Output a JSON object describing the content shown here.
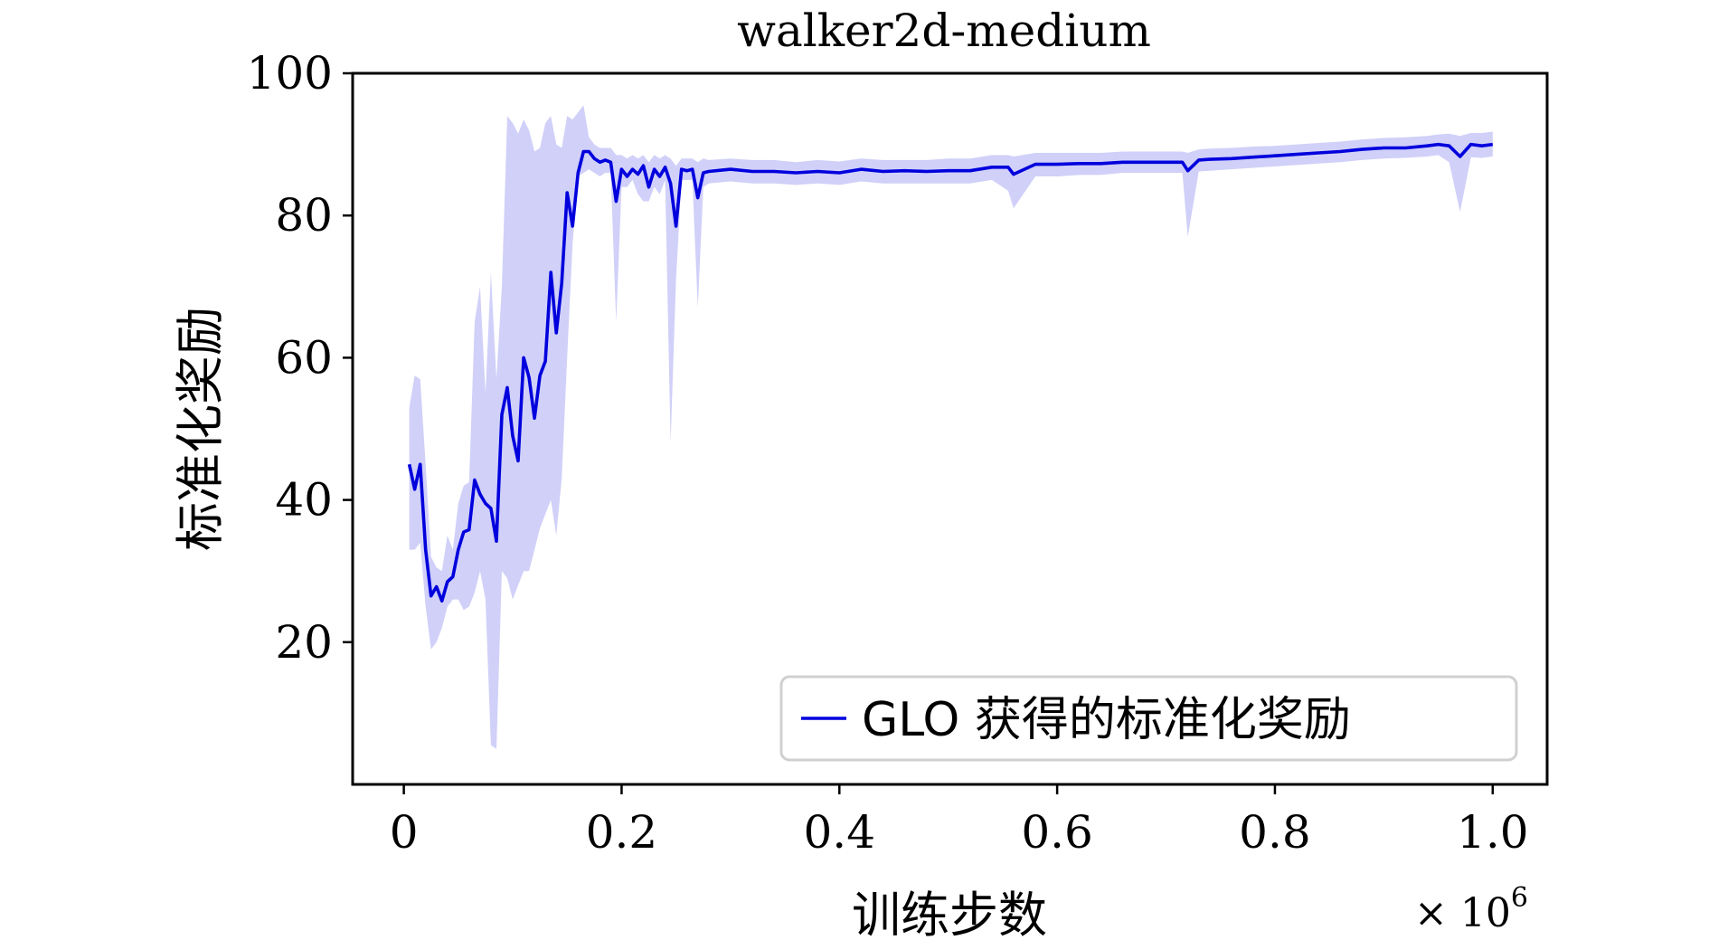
{
  "chart_data": {
    "type": "line",
    "title": "walker2d-medium",
    "xlabel": "训练步数",
    "ylabel": "标准化奖励",
    "x_multiplier_label": "× 10",
    "x_multiplier_exponent": "6",
    "xlim": [
      -0.047,
      1.05
    ],
    "ylim": [
      0,
      100
    ],
    "x_ticks": [
      {
        "value": 0,
        "label": "0"
      },
      {
        "value": 0.2,
        "label": "0.2"
      },
      {
        "value": 0.4,
        "label": "0.4"
      },
      {
        "value": 0.6,
        "label": "0.6"
      },
      {
        "value": 0.8,
        "label": "0.8"
      },
      {
        "value": 1.0,
        "label": "1.0"
      }
    ],
    "y_ticks": [
      {
        "value": 20,
        "label": "20"
      },
      {
        "value": 40,
        "label": "40"
      },
      {
        "value": 60,
        "label": "60"
      },
      {
        "value": 80,
        "label": "80"
      },
      {
        "value": 100,
        "label": "100"
      }
    ],
    "grid": false,
    "legend": {
      "position": "bottom-right",
      "entries": [
        "GLO 获得的标准化奖励"
      ]
    },
    "series": [
      {
        "name": "GLO 获得的标准化奖励",
        "color": "#0000dd",
        "band_color": "#c8c8f8",
        "x": [
          0.005,
          0.01,
          0.015,
          0.02,
          0.025,
          0.03,
          0.035,
          0.04,
          0.045,
          0.05,
          0.055,
          0.06,
          0.065,
          0.07,
          0.075,
          0.08,
          0.085,
          0.09,
          0.095,
          0.1,
          0.105,
          0.11,
          0.115,
          0.12,
          0.125,
          0.13,
          0.135,
          0.14,
          0.145,
          0.15,
          0.155,
          0.16,
          0.165,
          0.17,
          0.175,
          0.18,
          0.185,
          0.19,
          0.195,
          0.2,
          0.205,
          0.21,
          0.215,
          0.22,
          0.225,
          0.23,
          0.235,
          0.24,
          0.245,
          0.25,
          0.255,
          0.26,
          0.265,
          0.27,
          0.275,
          0.28,
          0.3,
          0.32,
          0.34,
          0.36,
          0.38,
          0.4,
          0.42,
          0.44,
          0.46,
          0.48,
          0.5,
          0.52,
          0.54,
          0.555,
          0.56,
          0.58,
          0.6,
          0.62,
          0.64,
          0.66,
          0.68,
          0.7,
          0.715,
          0.72,
          0.73,
          0.74,
          0.76,
          0.78,
          0.8,
          0.82,
          0.84,
          0.86,
          0.88,
          0.9,
          0.92,
          0.94,
          0.95,
          0.96,
          0.97,
          0.98,
          0.99,
          1.0
        ],
        "mean": [
          45,
          41.5,
          45,
          33,
          26.5,
          27.8,
          25.8,
          28.5,
          29.2,
          33,
          35.5,
          35.8,
          42.8,
          40.8,
          39.5,
          38.8,
          34.2,
          52,
          55.8,
          49,
          45.5,
          60,
          57.2,
          51.5,
          57.5,
          59.5,
          72,
          63.5,
          70.5,
          83.2,
          78.5,
          86,
          89,
          89,
          88,
          87.5,
          87.8,
          87.5,
          82,
          86.5,
          85.5,
          86.5,
          85.8,
          87,
          84,
          86.5,
          85.5,
          86.8,
          84.5,
          78.5,
          86.5,
          86.3,
          86.5,
          82.5,
          86,
          86.2,
          86.5,
          86.2,
          86.2,
          86,
          86.2,
          86,
          86.5,
          86.2,
          86.3,
          86.2,
          86.3,
          86.3,
          86.8,
          86.8,
          85.8,
          87.2,
          87.2,
          87.3,
          87.3,
          87.5,
          87.5,
          87.5,
          87.5,
          86.3,
          87.8,
          87.9,
          88,
          88.2,
          88.4,
          88.6,
          88.8,
          89,
          89.3,
          89.5,
          89.5,
          89.8,
          90,
          89.8,
          88.3,
          90,
          89.8,
          90
        ],
        "upper": [
          53,
          57.5,
          57,
          45,
          32,
          30.5,
          30,
          35,
          33,
          39.5,
          42,
          42.5,
          65,
          70,
          55,
          72,
          57,
          70,
          94,
          93,
          91.5,
          93.5,
          92,
          89,
          89.5,
          93,
          94,
          90,
          89.5,
          94,
          93.5,
          94.5,
          95.5,
          91,
          90,
          89.5,
          89.5,
          89.5,
          88.5,
          88.5,
          88,
          88.5,
          88,
          88.5,
          87.5,
          88.5,
          88,
          88.5,
          88,
          87,
          88,
          88,
          88,
          87.5,
          88,
          87.8,
          88,
          87.8,
          87.8,
          87.5,
          87.8,
          87.6,
          88,
          87.8,
          87.8,
          87.8,
          88,
          88,
          88.5,
          88.5,
          88.3,
          88.8,
          88.8,
          88.8,
          88.8,
          89,
          89,
          89,
          89,
          88.8,
          89.3,
          89.4,
          89.5,
          89.7,
          89.8,
          90,
          90.2,
          90.4,
          90.7,
          90.9,
          91,
          91.2,
          91.4,
          91.5,
          91.2,
          91.6,
          91.6,
          91.8
        ],
        "lower": [
          33,
          33,
          34,
          25,
          19,
          20,
          22,
          25,
          26,
          26,
          24.5,
          25,
          27,
          30,
          26,
          5.5,
          5,
          30,
          29,
          26,
          28,
          30,
          30,
          33,
          36,
          38,
          40,
          35,
          43,
          60,
          76,
          85.5,
          86,
          86.5,
          86,
          85.5,
          86,
          86,
          65,
          84,
          84,
          85,
          83,
          82,
          82,
          84,
          83,
          85,
          48,
          71,
          85,
          85,
          85,
          67,
          84,
          84.5,
          84.8,
          84.5,
          84.5,
          84.3,
          84.5,
          84.3,
          84.8,
          84.5,
          84.5,
          84.5,
          84.5,
          84.5,
          85,
          83.5,
          81,
          85.5,
          85.5,
          85.7,
          85.7,
          86,
          86,
          86,
          86,
          77,
          86.2,
          86.3,
          86.5,
          86.7,
          86.9,
          87.1,
          87.3,
          87.5,
          87.8,
          88,
          88.1,
          88.3,
          88.5,
          87.5,
          80.5,
          88.2,
          88.1,
          88.3
        ]
      }
    ]
  }
}
